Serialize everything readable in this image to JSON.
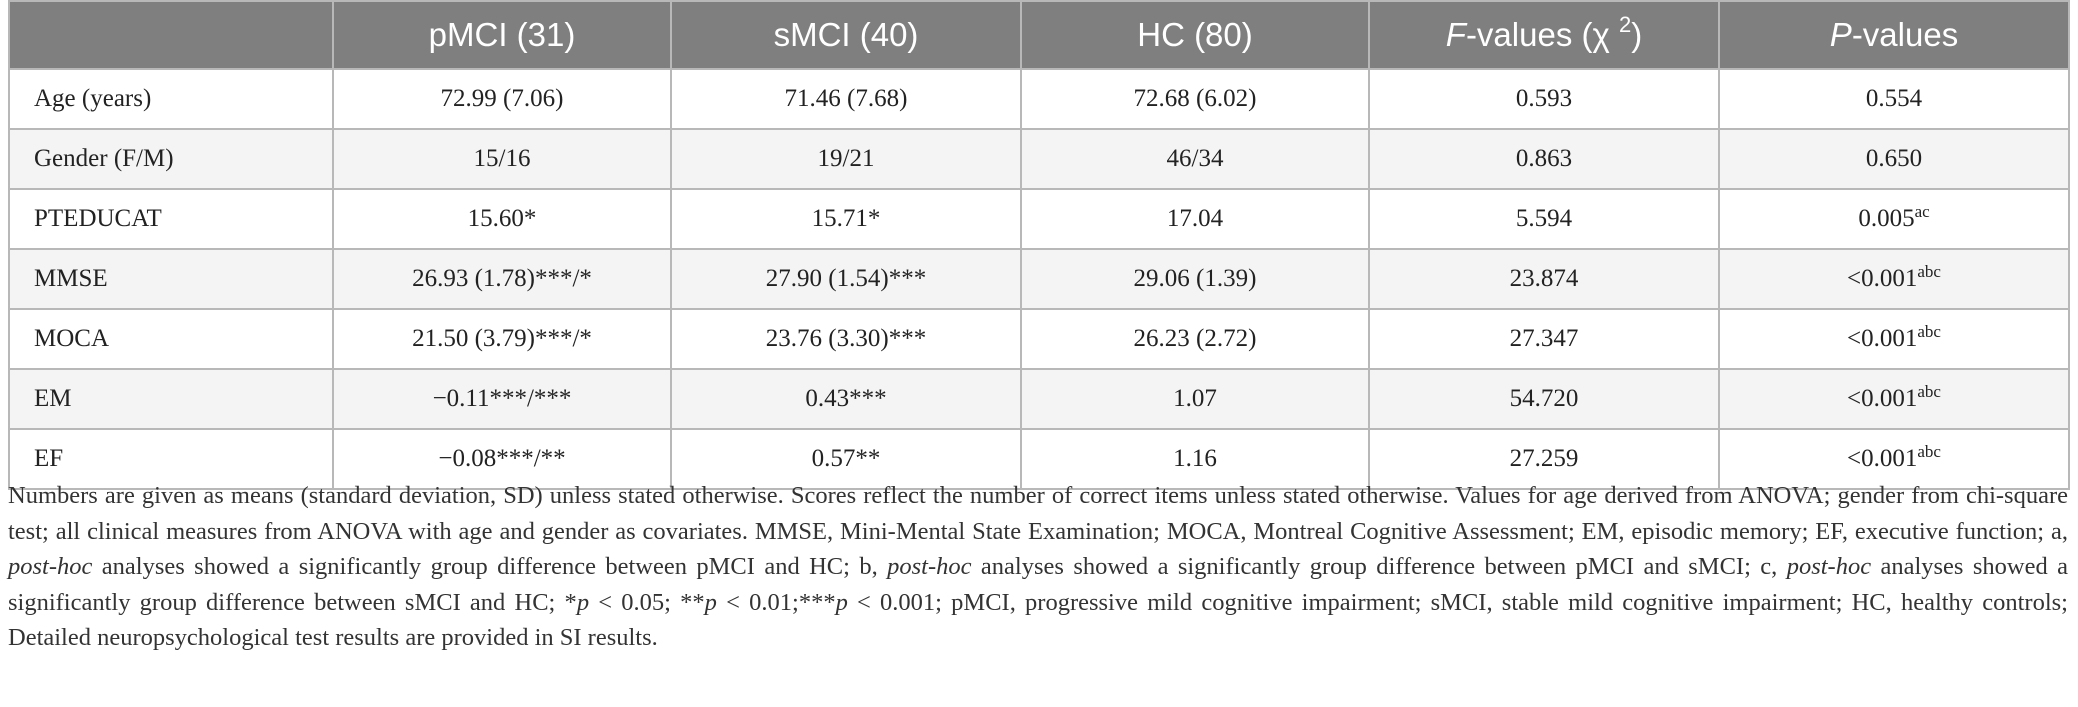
{
  "table": {
    "columns": [
      {
        "plain": ""
      },
      {
        "plain": "pMCI (31)"
      },
      {
        "plain": "sMCI (40)"
      },
      {
        "plain": "HC (80)"
      },
      {
        "italic": "F",
        "plain": "-values (χ ",
        "sup": "2",
        "tail": ")"
      },
      {
        "italic": "P",
        "plain": "-values"
      }
    ],
    "rows": [
      {
        "label": "Age (years)",
        "pmci": "72.99 (7.06)",
        "smci": "71.46 (7.68)",
        "hc": "72.68 (6.02)",
        "f": "0.593",
        "p": "0.554",
        "p_sup": ""
      },
      {
        "label": "Gender (F/M)",
        "pmci": "15/16",
        "smci": "19/21",
        "hc": "46/34",
        "f": "0.863",
        "p": "0.650",
        "p_sup": ""
      },
      {
        "label": "PTEDUCAT",
        "pmci": "15.60*",
        "smci": "15.71*",
        "hc": "17.04",
        "f": "5.594",
        "p": "0.005",
        "p_sup": "ac"
      },
      {
        "label": "MMSE",
        "pmci": "26.93 (1.78)***/*",
        "smci": "27.90 (1.54)***",
        "hc": "29.06 (1.39)",
        "f": "23.874",
        "p": "<0.001",
        "p_sup": "abc"
      },
      {
        "label": "MOCA",
        "pmci": "21.50 (3.79)***/*",
        "smci": "23.76 (3.30)***",
        "hc": "26.23 (2.72)",
        "f": "27.347",
        "p": "<0.001",
        "p_sup": "abc"
      },
      {
        "label": "EM",
        "pmci": "−0.11***/***",
        "smci": "0.43***",
        "hc": "1.07",
        "f": "54.720",
        "p": "<0.001",
        "p_sup": "abc"
      },
      {
        "label": "EF",
        "pmci": "−0.08***/**",
        "smci": "0.57**",
        "hc": "1.16",
        "f": "27.259",
        "p": "<0.001",
        "p_sup": "abc"
      }
    ]
  },
  "footnote": {
    "segments": [
      {
        "t": "Numbers are given as means (standard deviation, SD) unless stated otherwise. Scores reflect the number of correct items unless stated otherwise. Values for age derived from ANOVA; gender from chi-square test; all clinical measures from ANOVA with age and gender as covariates. MMSE, Mini-Mental State Examination; MOCA, Montreal Cognitive Assessment; EM, episodic memory; EF, executive function; a, "
      },
      {
        "t": "post-hoc",
        "i": true
      },
      {
        "t": " analyses showed a significantly group difference between pMCI and HC; b, "
      },
      {
        "t": "post-hoc",
        "i": true
      },
      {
        "t": " analyses showed a significantly group difference between pMCI and sMCI; c, "
      },
      {
        "t": "post-hoc",
        "i": true
      },
      {
        "t": " analyses showed a significantly group difference between sMCI and HC; *"
      },
      {
        "t": "p",
        "i": true
      },
      {
        "t": " < 0.05; **"
      },
      {
        "t": "p",
        "i": true
      },
      {
        "t": " < 0.01;***"
      },
      {
        "t": "p",
        "i": true
      },
      {
        "t": " < 0.001; pMCI, progressive mild cognitive impairment; sMCI, stable mild cognitive impairment; HC, healthy controls; Detailed neuropsychological test results are provided in SI results."
      }
    ]
  }
}
